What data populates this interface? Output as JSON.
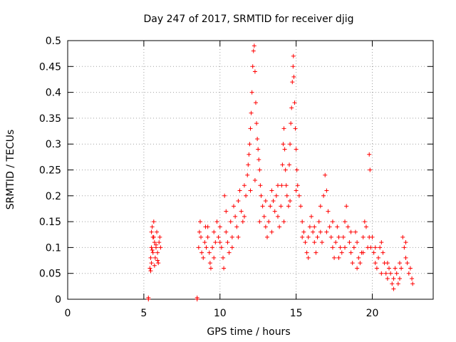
{
  "chart_data": {
    "type": "scatter",
    "title": "Day 247 of 2017, SRMTID for receiver djig",
    "xlabel": "GPS time / hours",
    "ylabel": "SRMTID / TECUs",
    "xlim": [
      0,
      24
    ],
    "ylim": [
      0,
      0.5
    ],
    "x_ticks": [
      0,
      5,
      10,
      15,
      20
    ],
    "y_ticks": [
      0,
      0.05,
      0.1,
      0.15,
      0.2,
      0.25,
      0.3,
      0.35,
      0.4,
      0.45,
      0.5
    ],
    "x_tick_labels": [
      "0",
      "5",
      "10",
      "15",
      "20"
    ],
    "y_tick_labels": [
      "0",
      "0.05",
      "0.1",
      "0.15",
      "0.2",
      "0.25",
      "0.3",
      "0.35",
      "0.4",
      "0.45",
      "0.5"
    ],
    "grid": true,
    "marker": "+",
    "series": [
      {
        "name": "SRMTID",
        "color": "#ff0000",
        "points": [
          [
            5.3,
            0.0
          ],
          [
            5.3,
            0.003
          ],
          [
            8.5,
            0.0
          ],
          [
            8.5,
            0.003
          ],
          [
            5.4,
            0.06
          ],
          [
            5.45,
            0.08
          ],
          [
            5.5,
            0.1
          ],
          [
            5.5,
            0.13
          ],
          [
            5.55,
            0.14
          ],
          [
            5.6,
            0.12
          ],
          [
            5.6,
            0.09
          ],
          [
            5.65,
            0.15
          ],
          [
            5.7,
            0.11
          ],
          [
            5.75,
            0.08
          ],
          [
            5.8,
            0.1
          ],
          [
            5.85,
            0.13
          ],
          [
            5.9,
            0.09
          ],
          [
            5.95,
            0.07
          ],
          [
            6.0,
            0.11
          ],
          [
            6.05,
            0.12
          ],
          [
            5.45,
            0.055
          ],
          [
            5.7,
            0.065
          ],
          [
            5.9,
            0.075
          ],
          [
            6.1,
            0.1
          ],
          [
            5.55,
            0.095
          ],
          [
            5.8,
            0.105
          ],
          [
            5.5,
            0.07
          ],
          [
            5.65,
            0.12
          ],
          [
            8.6,
            0.1
          ],
          [
            8.65,
            0.13
          ],
          [
            8.7,
            0.15
          ],
          [
            8.75,
            0.12
          ],
          [
            8.8,
            0.09
          ],
          [
            8.9,
            0.08
          ],
          [
            9.0,
            0.11
          ],
          [
            9.05,
            0.14
          ],
          [
            9.1,
            0.1
          ],
          [
            9.2,
            0.12
          ],
          [
            9.3,
            0.09
          ],
          [
            9.35,
            0.07
          ],
          [
            9.4,
            0.06
          ],
          [
            9.5,
            0.1
          ],
          [
            9.6,
            0.13
          ],
          [
            9.7,
            0.11
          ],
          [
            9.8,
            0.15
          ],
          [
            9.9,
            0.12
          ],
          [
            10.0,
            0.14
          ],
          [
            10.1,
            0.1
          ],
          [
            10.2,
            0.08
          ],
          [
            10.25,
            0.06
          ],
          [
            10.3,
            0.2
          ],
          [
            10.4,
            0.13
          ],
          [
            10.5,
            0.11
          ],
          [
            10.6,
            0.09
          ],
          [
            10.7,
            0.15
          ],
          [
            10.8,
            0.12
          ],
          [
            10.9,
            0.18
          ],
          [
            11.0,
            0.16
          ],
          [
            11.1,
            0.14
          ],
          [
            11.2,
            0.19
          ],
          [
            11.3,
            0.21
          ],
          [
            11.4,
            0.17
          ],
          [
            11.5,
            0.15
          ],
          [
            11.6,
            0.22
          ],
          [
            11.7,
            0.2
          ],
          [
            11.8,
            0.24
          ],
          [
            11.85,
            0.26
          ],
          [
            11.9,
            0.28
          ],
          [
            11.95,
            0.3
          ],
          [
            12.0,
            0.33
          ],
          [
            12.05,
            0.36
          ],
          [
            12.1,
            0.4
          ],
          [
            12.15,
            0.45
          ],
          [
            12.2,
            0.48
          ],
          [
            12.25,
            0.49
          ],
          [
            12.3,
            0.44
          ],
          [
            12.35,
            0.38
          ],
          [
            12.4,
            0.34
          ],
          [
            12.45,
            0.31
          ],
          [
            12.5,
            0.29
          ],
          [
            12.55,
            0.27
          ],
          [
            12.6,
            0.25
          ],
          [
            12.65,
            0.22
          ],
          [
            12.7,
            0.2
          ],
          [
            12.8,
            0.18
          ],
          [
            12.9,
            0.16
          ],
          [
            13.0,
            0.14
          ],
          [
            13.1,
            0.12
          ],
          [
            13.2,
            0.15
          ],
          [
            13.3,
            0.18
          ],
          [
            13.4,
            0.21
          ],
          [
            13.5,
            0.19
          ],
          [
            13.6,
            0.17
          ],
          [
            13.7,
            0.2
          ],
          [
            13.8,
            0.16
          ],
          [
            13.9,
            0.14
          ],
          [
            14.0,
            0.18
          ],
          [
            14.05,
            0.22
          ],
          [
            14.1,
            0.26
          ],
          [
            14.15,
            0.3
          ],
          [
            14.2,
            0.33
          ],
          [
            14.25,
            0.29
          ],
          [
            14.3,
            0.25
          ],
          [
            14.35,
            0.22
          ],
          [
            14.4,
            0.2
          ],
          [
            14.5,
            0.18
          ],
          [
            14.55,
            0.26
          ],
          [
            14.6,
            0.3
          ],
          [
            14.65,
            0.34
          ],
          [
            14.7,
            0.37
          ],
          [
            14.75,
            0.42
          ],
          [
            14.8,
            0.45
          ],
          [
            14.82,
            0.47
          ],
          [
            14.85,
            0.43
          ],
          [
            14.9,
            0.38
          ],
          [
            14.95,
            0.33
          ],
          [
            15.0,
            0.29
          ],
          [
            15.05,
            0.25
          ],
          [
            15.1,
            0.22
          ],
          [
            15.2,
            0.2
          ],
          [
            15.3,
            0.18
          ],
          [
            15.4,
            0.15
          ],
          [
            15.5,
            0.13
          ],
          [
            15.6,
            0.11
          ],
          [
            15.7,
            0.09
          ],
          [
            15.8,
            0.12
          ],
          [
            15.9,
            0.14
          ],
          [
            16.0,
            0.16
          ],
          [
            16.1,
            0.13
          ],
          [
            16.2,
            0.11
          ],
          [
            16.3,
            0.09
          ],
          [
            16.4,
            0.12
          ],
          [
            16.5,
            0.15
          ],
          [
            16.6,
            0.13
          ],
          [
            16.7,
            0.11
          ],
          [
            16.8,
            0.2
          ],
          [
            16.9,
            0.24
          ],
          [
            17.0,
            0.21
          ],
          [
            17.1,
            0.17
          ],
          [
            17.2,
            0.14
          ],
          [
            17.3,
            0.12
          ],
          [
            17.4,
            0.1
          ],
          [
            17.5,
            0.08
          ],
          [
            17.6,
            0.11
          ],
          [
            17.7,
            0.14
          ],
          [
            17.8,
            0.12
          ],
          [
            17.9,
            0.1
          ],
          [
            18.0,
            0.09
          ],
          [
            18.1,
            0.12
          ],
          [
            18.2,
            0.15
          ],
          [
            18.3,
            0.18
          ],
          [
            18.4,
            0.14
          ],
          [
            18.5,
            0.11
          ],
          [
            18.6,
            0.09
          ],
          [
            18.7,
            0.07
          ],
          [
            18.8,
            0.1
          ],
          [
            18.9,
            0.13
          ],
          [
            19.0,
            0.11
          ],
          [
            19.1,
            0.08
          ],
          [
            19.2,
            0.07
          ],
          [
            19.3,
            0.09
          ],
          [
            19.4,
            0.12
          ],
          [
            19.5,
            0.15
          ],
          [
            19.6,
            0.14
          ],
          [
            19.7,
            0.1
          ],
          [
            19.8,
            0.28
          ],
          [
            19.85,
            0.25
          ],
          [
            19.9,
            0.1
          ],
          [
            20.0,
            0.12
          ],
          [
            20.1,
            0.09
          ],
          [
            20.2,
            0.07
          ],
          [
            20.3,
            0.06
          ],
          [
            20.4,
            0.08
          ],
          [
            20.5,
            0.1
          ],
          [
            20.6,
            0.11
          ],
          [
            20.7,
            0.09
          ],
          [
            20.8,
            0.07
          ],
          [
            20.9,
            0.05
          ],
          [
            21.0,
            0.04
          ],
          [
            21.1,
            0.06
          ],
          [
            21.2,
            0.05
          ],
          [
            21.3,
            0.03
          ],
          [
            21.4,
            0.04
          ],
          [
            21.5,
            0.06
          ],
          [
            21.6,
            0.05
          ],
          [
            21.7,
            0.03
          ],
          [
            21.8,
            0.04
          ],
          [
            21.9,
            0.06
          ],
          [
            22.0,
            0.12
          ],
          [
            22.1,
            0.1
          ],
          [
            22.2,
            0.08
          ],
          [
            22.3,
            0.07
          ],
          [
            22.4,
            0.05
          ],
          [
            22.5,
            0.06
          ],
          [
            22.6,
            0.04
          ],
          [
            22.65,
            0.03
          ],
          [
            9.2,
            0.14
          ],
          [
            9.6,
            0.08
          ],
          [
            10.0,
            0.11
          ],
          [
            10.4,
            0.17
          ],
          [
            10.8,
            0.1
          ],
          [
            11.2,
            0.12
          ],
          [
            11.6,
            0.16
          ],
          [
            12.0,
            0.21
          ],
          [
            12.3,
            0.23
          ],
          [
            12.6,
            0.15
          ],
          [
            13.0,
            0.19
          ],
          [
            13.4,
            0.13
          ],
          [
            13.8,
            0.22
          ],
          [
            14.2,
            0.15
          ],
          [
            14.6,
            0.19
          ],
          [
            15.0,
            0.21
          ],
          [
            15.4,
            0.12
          ],
          [
            15.8,
            0.08
          ],
          [
            16.2,
            0.14
          ],
          [
            16.6,
            0.18
          ],
          [
            17.0,
            0.13
          ],
          [
            17.4,
            0.15
          ],
          [
            17.8,
            0.08
          ],
          [
            18.2,
            0.1
          ],
          [
            18.6,
            0.13
          ],
          [
            19.0,
            0.06
          ],
          [
            19.4,
            0.09
          ],
          [
            19.8,
            0.12
          ],
          [
            20.2,
            0.1
          ],
          [
            20.6,
            0.05
          ],
          [
            21.0,
            0.07
          ],
          [
            21.4,
            0.02
          ],
          [
            21.8,
            0.07
          ],
          [
            22.2,
            0.11
          ]
        ]
      }
    ]
  }
}
